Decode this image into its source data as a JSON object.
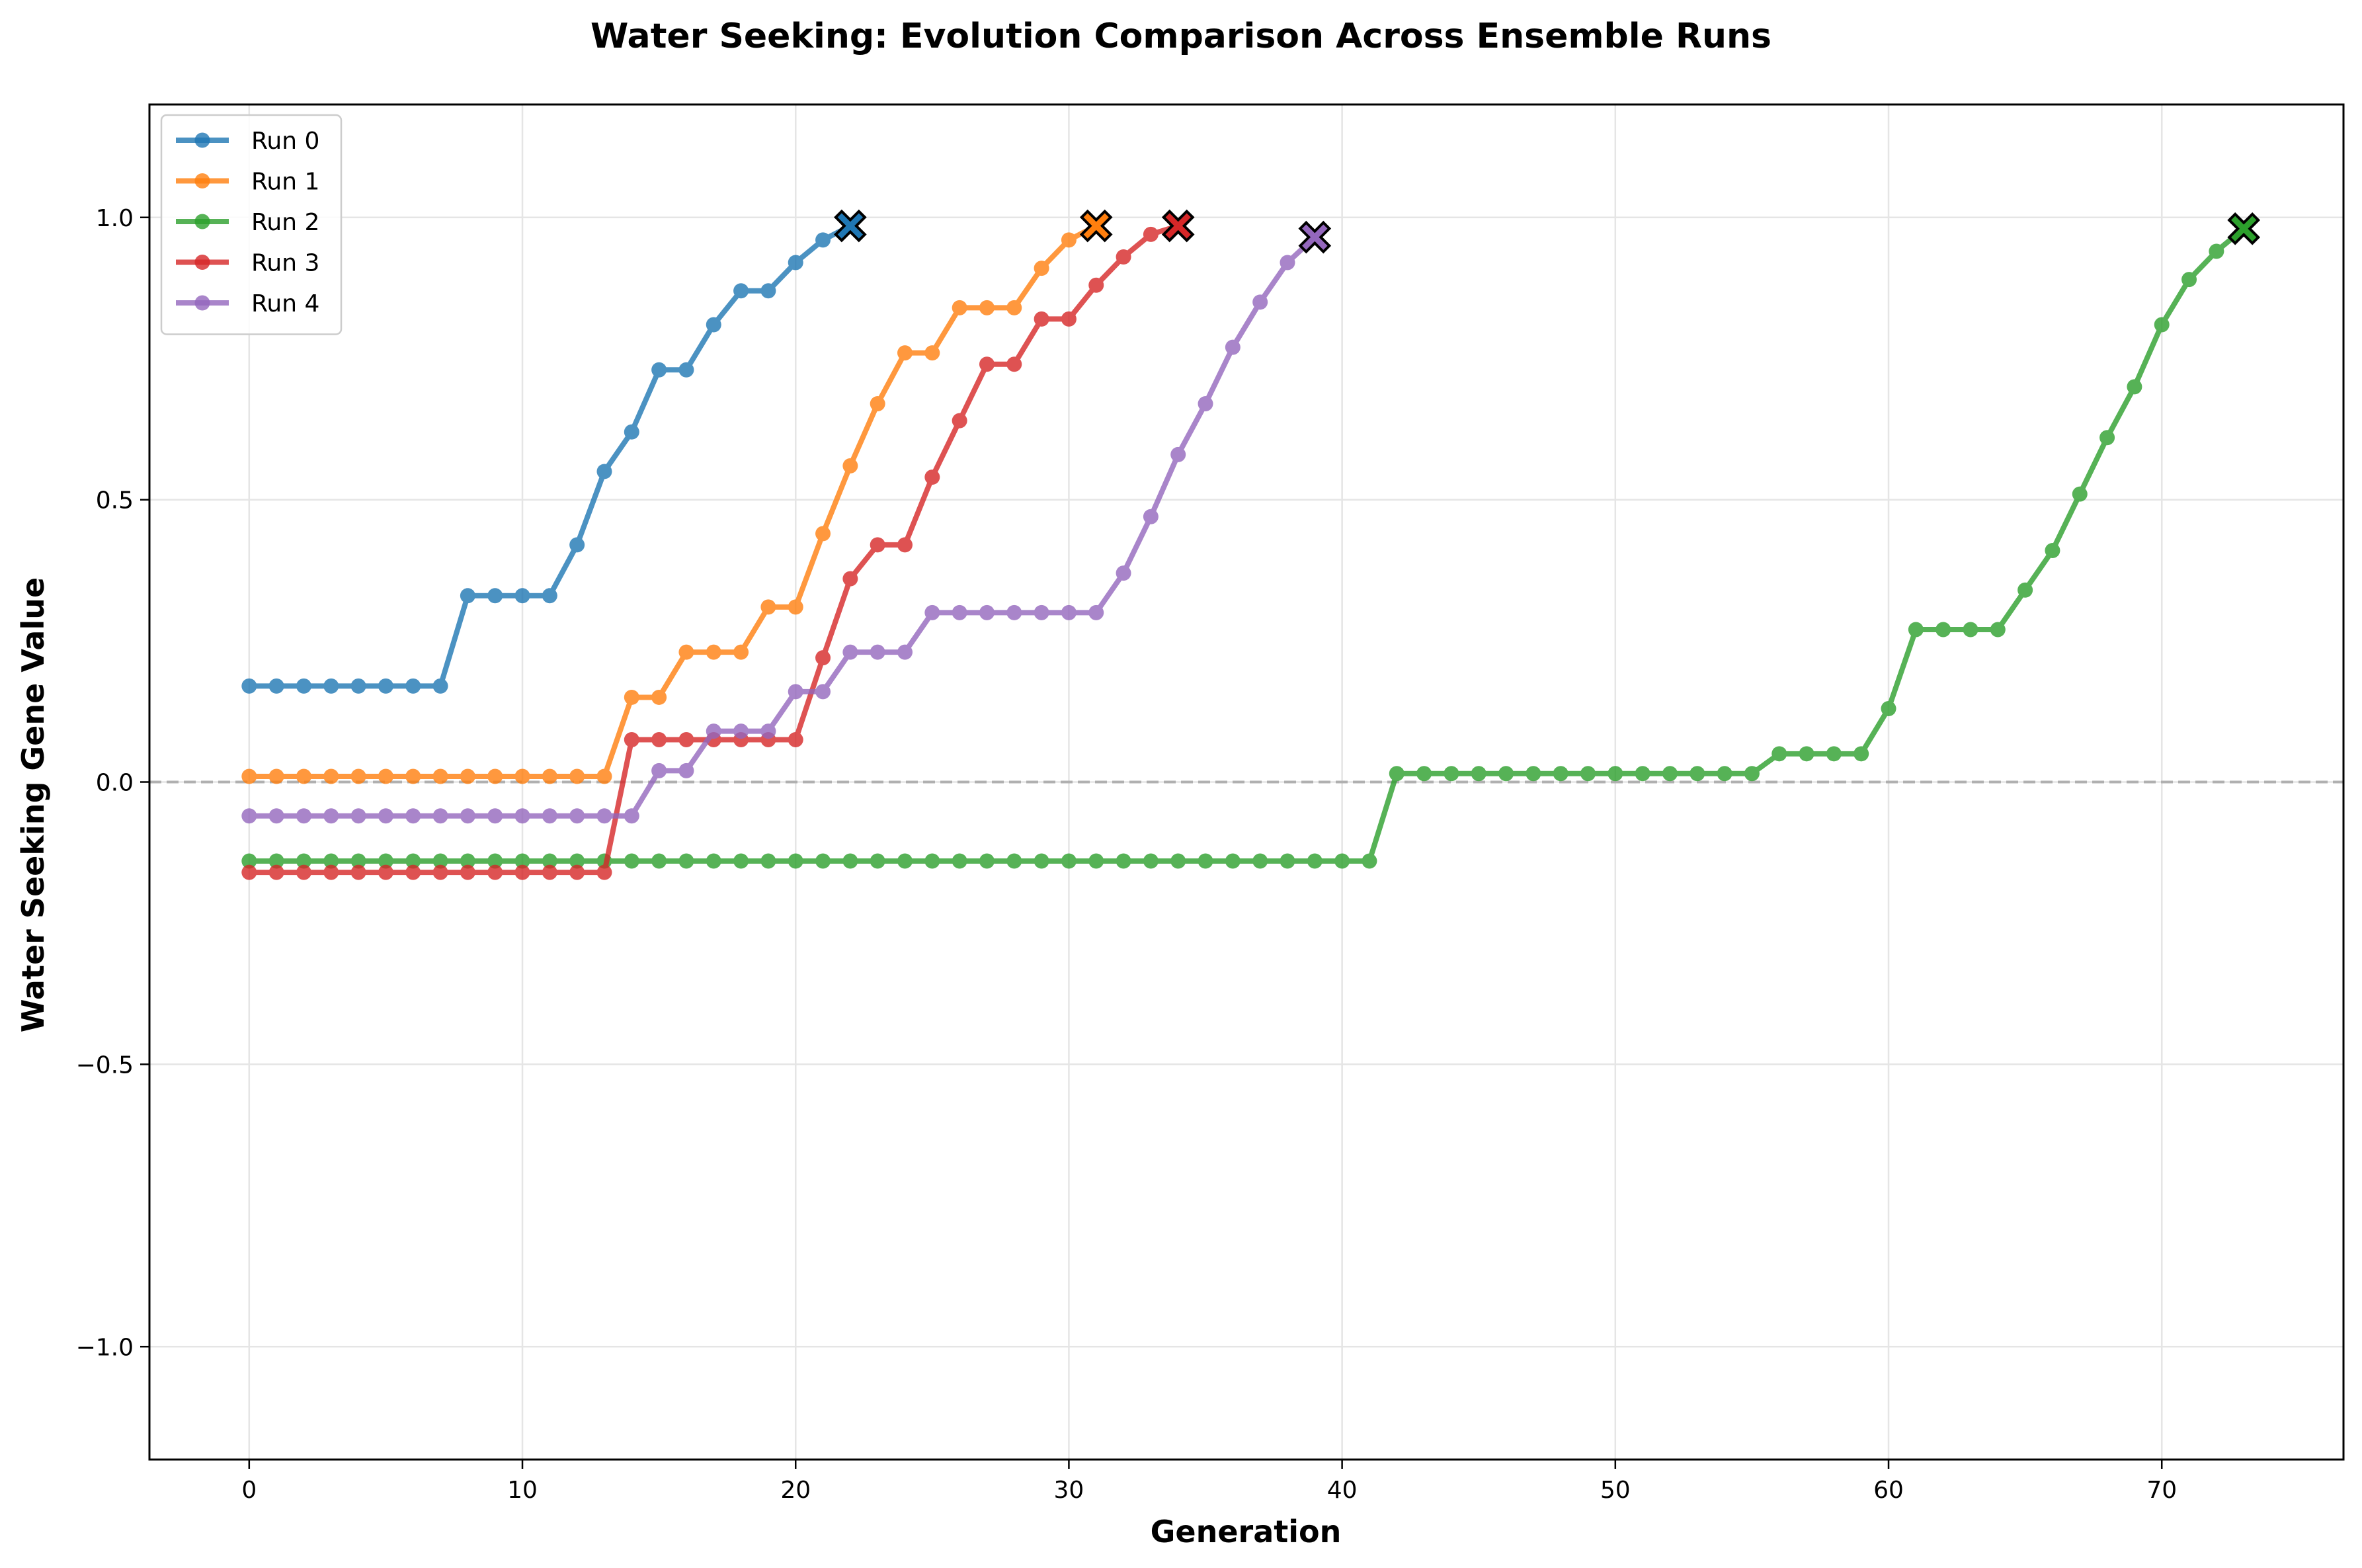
{
  "chart_data": {
    "type": "line",
    "title": "Water Seeking: Evolution Comparison Across Ensemble Runs",
    "xlabel": "Generation",
    "ylabel": "Water Seeking Gene Value",
    "xlim": [
      -3.65,
      76.65
    ],
    "ylim": [
      -1.2,
      1.2
    ],
    "xticks": [
      0,
      10,
      20,
      30,
      40,
      50,
      60,
      70
    ],
    "xtick_labels": [
      "0",
      "10",
      "20",
      "30",
      "40",
      "50",
      "60",
      "70"
    ],
    "yticks": [
      -1.0,
      -0.5,
      0.0,
      0.5,
      1.0
    ],
    "ytick_labels": [
      "−1.0",
      "−0.5",
      "0.0",
      "0.5",
      "1.0"
    ],
    "grid": true,
    "reference_line": {
      "y": 0.0,
      "style": "dashed",
      "color": "#b0b0b0"
    },
    "legend_position": "top-left",
    "end_marker": "X",
    "series": [
      {
        "name": "Run 0",
        "color": "#1f77b4",
        "x": [
          0,
          1,
          2,
          3,
          4,
          5,
          6,
          7,
          8,
          9,
          10,
          11,
          12,
          13,
          14,
          15,
          16,
          17,
          18,
          19,
          20,
          21,
          22
        ],
        "values": [
          0.17,
          0.17,
          0.17,
          0.17,
          0.17,
          0.17,
          0.17,
          0.17,
          0.33,
          0.33,
          0.33,
          0.33,
          0.42,
          0.55,
          0.62,
          0.73,
          0.73,
          0.81,
          0.87,
          0.87,
          0.92,
          0.96,
          0.985
        ]
      },
      {
        "name": "Run 1",
        "color": "#ff7f0e",
        "x": [
          0,
          1,
          2,
          3,
          4,
          5,
          6,
          7,
          8,
          9,
          10,
          11,
          12,
          13,
          14,
          15,
          16,
          17,
          18,
          19,
          20,
          21,
          22,
          23,
          24,
          25,
          26,
          27,
          28,
          29,
          30,
          31
        ],
        "values": [
          0.01,
          0.01,
          0.01,
          0.01,
          0.01,
          0.01,
          0.01,
          0.01,
          0.01,
          0.01,
          0.01,
          0.01,
          0.01,
          0.01,
          0.15,
          0.15,
          0.23,
          0.23,
          0.23,
          0.31,
          0.31,
          0.44,
          0.56,
          0.67,
          0.76,
          0.76,
          0.84,
          0.84,
          0.84,
          0.91,
          0.96,
          0.985
        ]
      },
      {
        "name": "Run 2",
        "color": "#2ca02c",
        "x": [
          0,
          1,
          2,
          3,
          4,
          5,
          6,
          7,
          8,
          9,
          10,
          11,
          12,
          13,
          14,
          15,
          16,
          17,
          18,
          19,
          20,
          21,
          22,
          23,
          24,
          25,
          26,
          27,
          28,
          29,
          30,
          31,
          32,
          33,
          34,
          35,
          36,
          37,
          38,
          39,
          40,
          41,
          42,
          43,
          44,
          45,
          46,
          47,
          48,
          49,
          50,
          51,
          52,
          53,
          54,
          55,
          56,
          57,
          58,
          59,
          60,
          61,
          62,
          63,
          64,
          65,
          66,
          67,
          68,
          69,
          70,
          71,
          72,
          73
        ],
        "values": [
          -0.14,
          -0.14,
          -0.14,
          -0.14,
          -0.14,
          -0.14,
          -0.14,
          -0.14,
          -0.14,
          -0.14,
          -0.14,
          -0.14,
          -0.14,
          -0.14,
          -0.14,
          -0.14,
          -0.14,
          -0.14,
          -0.14,
          -0.14,
          -0.14,
          -0.14,
          -0.14,
          -0.14,
          -0.14,
          -0.14,
          -0.14,
          -0.14,
          -0.14,
          -0.14,
          -0.14,
          -0.14,
          -0.14,
          -0.14,
          -0.14,
          -0.14,
          -0.14,
          -0.14,
          -0.14,
          -0.14,
          -0.14,
          -0.14,
          0.015,
          0.015,
          0.015,
          0.015,
          0.015,
          0.015,
          0.015,
          0.015,
          0.015,
          0.015,
          0.015,
          0.015,
          0.015,
          0.015,
          0.05,
          0.05,
          0.05,
          0.05,
          0.13,
          0.27,
          0.27,
          0.27,
          0.27,
          0.34,
          0.41,
          0.51,
          0.61,
          0.7,
          0.81,
          0.89,
          0.94,
          0.98
        ]
      },
      {
        "name": "Run 3",
        "color": "#d62728",
        "x": [
          0,
          1,
          2,
          3,
          4,
          5,
          6,
          7,
          8,
          9,
          10,
          11,
          12,
          13,
          14,
          15,
          16,
          17,
          18,
          19,
          20,
          21,
          22,
          23,
          24,
          25,
          26,
          27,
          28,
          29,
          30,
          31,
          32,
          33,
          34
        ],
        "values": [
          -0.16,
          -0.16,
          -0.16,
          -0.16,
          -0.16,
          -0.16,
          -0.16,
          -0.16,
          -0.16,
          -0.16,
          -0.16,
          -0.16,
          -0.16,
          -0.16,
          0.075,
          0.075,
          0.075,
          0.075,
          0.075,
          0.075,
          0.075,
          0.22,
          0.36,
          0.42,
          0.42,
          0.54,
          0.64,
          0.74,
          0.74,
          0.82,
          0.82,
          0.88,
          0.93,
          0.97,
          0.985
        ]
      },
      {
        "name": "Run 4",
        "color": "#9467bd",
        "x": [
          0,
          1,
          2,
          3,
          4,
          5,
          6,
          7,
          8,
          9,
          10,
          11,
          12,
          13,
          14,
          15,
          16,
          17,
          18,
          19,
          20,
          21,
          22,
          23,
          24,
          25,
          26,
          27,
          28,
          29,
          30,
          31,
          32,
          33,
          34,
          35,
          36,
          37,
          38,
          39
        ],
        "values": [
          -0.06,
          -0.06,
          -0.06,
          -0.06,
          -0.06,
          -0.06,
          -0.06,
          -0.06,
          -0.06,
          -0.06,
          -0.06,
          -0.06,
          -0.06,
          -0.06,
          -0.06,
          0.02,
          0.02,
          0.09,
          0.09,
          0.09,
          0.16,
          0.16,
          0.23,
          0.23,
          0.23,
          0.3,
          0.3,
          0.3,
          0.3,
          0.3,
          0.3,
          0.3,
          0.37,
          0.47,
          0.58,
          0.67,
          0.77,
          0.85,
          0.92,
          0.965
        ]
      }
    ]
  }
}
